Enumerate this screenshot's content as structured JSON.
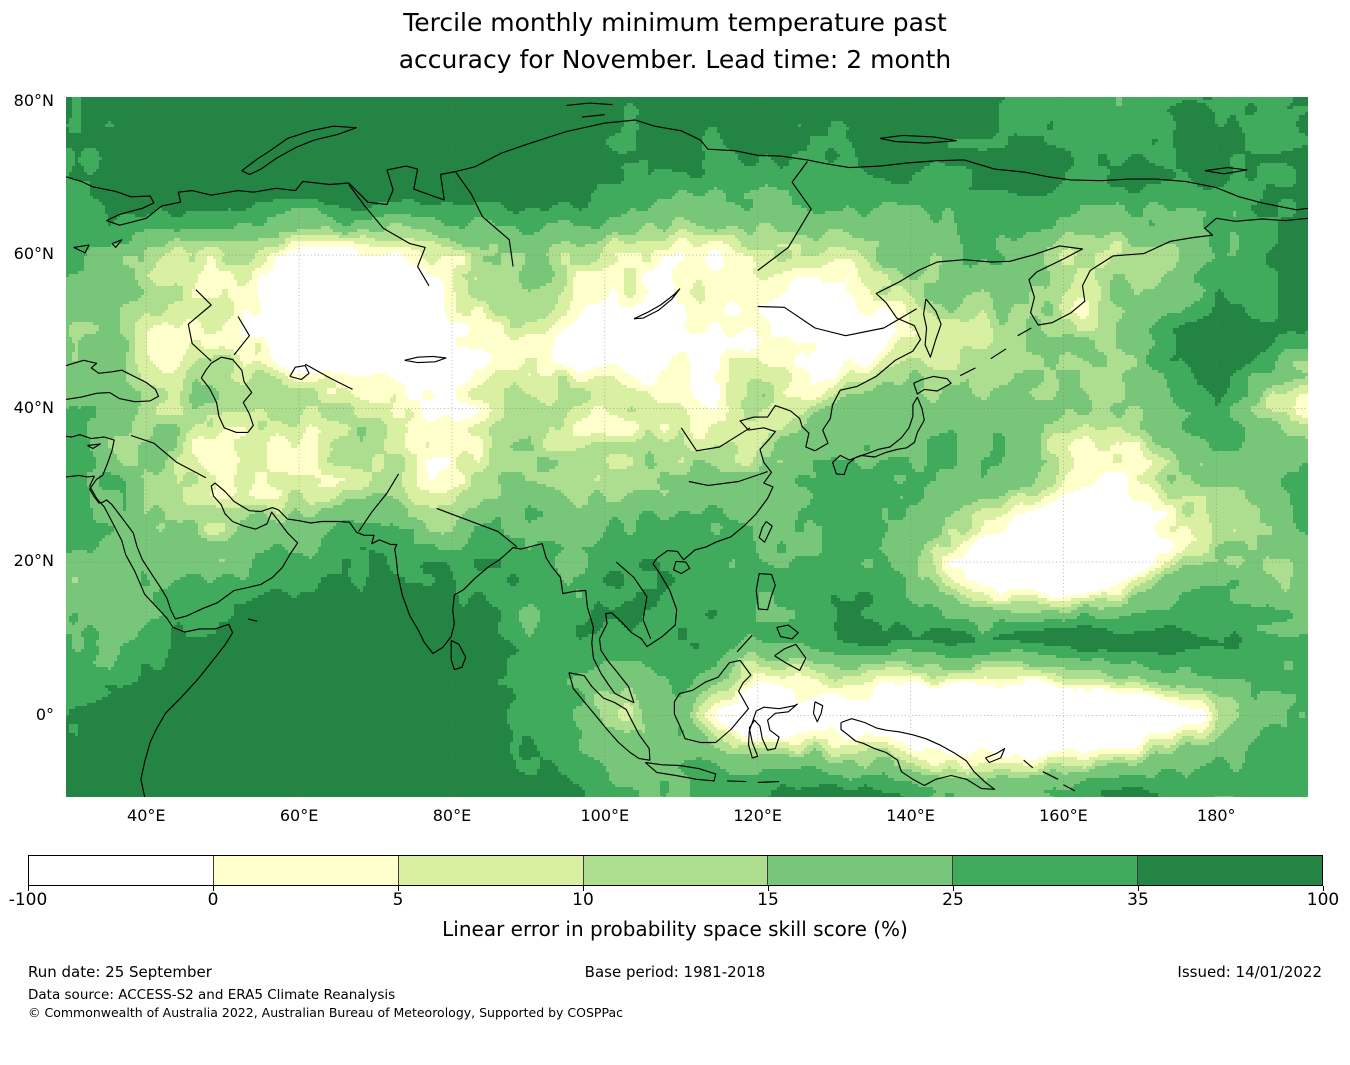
{
  "title": {
    "line1": "Tercile monthly minimum temperature past",
    "line2": "accuracy for November. Lead time: 2 month"
  },
  "map": {
    "lat_ticks": [
      {
        "label": "80°N",
        "value": 80
      },
      {
        "label": "60°N",
        "value": 60
      },
      {
        "label": "40°N",
        "value": 40
      },
      {
        "label": "20°N",
        "value": 20
      },
      {
        "label": "0°",
        "value": 0
      }
    ],
    "lon_ticks": [
      {
        "label": "40°E",
        "value": 40
      },
      {
        "label": "60°E",
        "value": 60
      },
      {
        "label": "80°E",
        "value": 80
      },
      {
        "label": "100°E",
        "value": 100
      },
      {
        "label": "120°E",
        "value": 120
      },
      {
        "label": "140°E",
        "value": 140
      },
      {
        "label": "160°E",
        "value": 160
      },
      {
        "label": "180°",
        "value": 180
      }
    ],
    "extent": {
      "lon_min": 29.5,
      "lon_max": 192.0,
      "lat_min": -10.6,
      "lat_max": 80.6
    },
    "gridline_color": "#777777",
    "coastline_color": "#000000"
  },
  "colorbar": {
    "label": "Linear error in probability space skill score (%)",
    "tick_labels": [
      "-100",
      "0",
      "5",
      "10",
      "15",
      "25",
      "35",
      "100"
    ]
  },
  "footer": {
    "run_date": "Run date: 25 September",
    "base_period": "Base period: 1981-2018",
    "issued": "Issued: 14/01/2022",
    "data_source": "Data source: ACCESS-S2 and ERA5 Climate Reanalysis",
    "copyright": "© Commonwealth of Australia 2022, Australian Bureau of Meteorology, Supported by COSPPac"
  },
  "chart_data": {
    "type": "heatmap",
    "title": "Tercile monthly minimum temperature past accuracy for November. Lead time: 2 month",
    "variable": "Linear error in probability space skill score (%)",
    "projection": "equirectangular",
    "levels": [
      -100,
      0,
      5,
      10,
      15,
      25,
      35,
      100
    ],
    "colors": [
      "#ffffff",
      "#ffffcc",
      "#d9f0a3",
      "#addd8e",
      "#78c679",
      "#41ab5d",
      "#238443"
    ],
    "lons": [
      30,
      40,
      50,
      60,
      70,
      80,
      90,
      100,
      110,
      120,
      130,
      140,
      150,
      160,
      170,
      180,
      190
    ],
    "lats": [
      80,
      70,
      60,
      50,
      40,
      30,
      20,
      10,
      0,
      -10
    ],
    "values": [
      [
        35,
        40,
        45,
        52,
        55,
        55,
        50,
        45,
        40,
        40,
        38,
        40,
        40,
        35,
        25,
        28,
        30
      ],
      [
        30,
        42,
        50,
        52,
        50,
        45,
        40,
        38,
        35,
        30,
        28,
        32,
        38,
        42,
        40,
        32,
        28
      ],
      [
        18,
        15,
        10,
        6,
        3,
        3,
        3,
        4,
        6,
        10,
        14,
        18,
        12,
        10,
        18,
        28,
        35
      ],
      [
        12,
        8,
        4,
        -25,
        -25,
        2,
        2,
        2,
        3,
        2,
        -15,
        3,
        10,
        14,
        22,
        42,
        35
      ],
      [
        20,
        13,
        14,
        7,
        2,
        -10,
        3,
        7,
        7,
        10,
        15,
        18,
        22,
        25,
        22,
        22,
        8
      ],
      [
        26,
        20,
        13,
        13,
        8,
        0,
        7,
        8,
        14,
        24,
        26,
        22,
        12,
        4,
        7,
        15,
        18
      ],
      [
        30,
        22,
        16,
        28,
        35,
        28,
        22,
        25,
        25,
        25,
        22,
        12,
        -10,
        -35,
        -10,
        10,
        18
      ],
      [
        34,
        28,
        35,
        42,
        45,
        35,
        28,
        22,
        28,
        26,
        30,
        32,
        40,
        42,
        38,
        34,
        30
      ],
      [
        40,
        36,
        44,
        46,
        42,
        40,
        36,
        14,
        26,
        -10,
        0,
        -15,
        -30,
        -30,
        -15,
        10,
        24
      ],
      [
        42,
        40,
        45,
        46,
        44,
        40,
        40,
        34,
        30,
        32,
        34,
        32,
        26,
        28,
        32,
        30,
        28
      ]
    ]
  }
}
